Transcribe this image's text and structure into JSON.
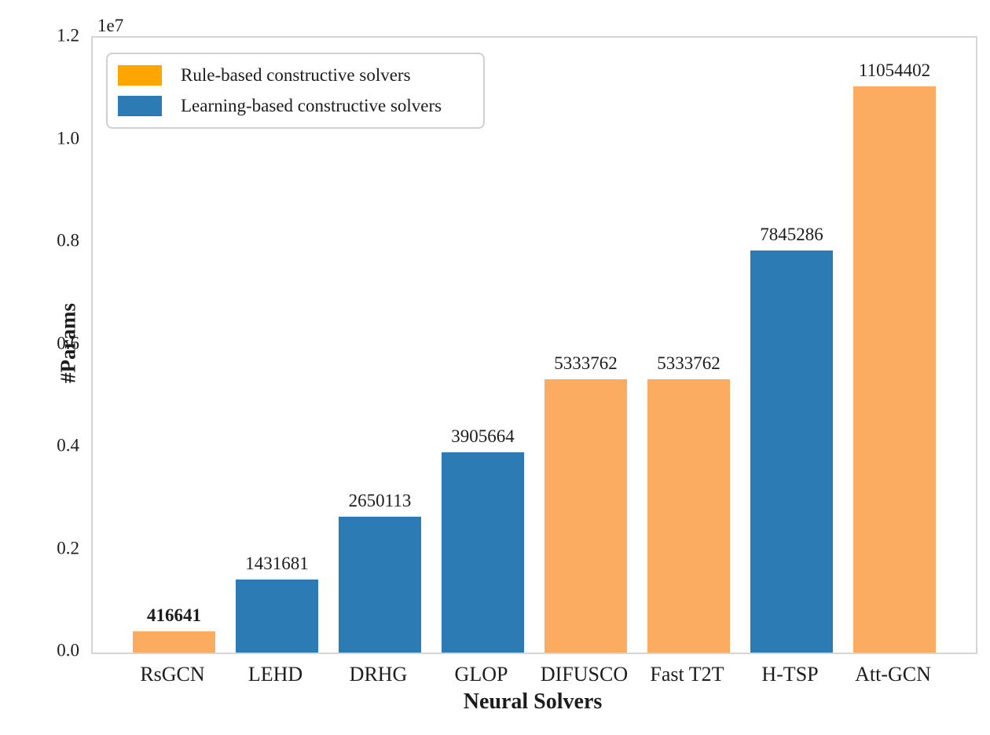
{
  "chart_data": {
    "type": "bar",
    "title": "",
    "xlabel": "Neural Solvers",
    "ylabel": "#Params",
    "y_offset_label": "1e7",
    "ylim": [
      0,
      12000000
    ],
    "yticks": [
      "0.0",
      "0.2",
      "0.4",
      "0.6",
      "0.8",
      "1.0",
      "1.2"
    ],
    "categories": [
      "RsGCN",
      "LEHD",
      "DRHG",
      "GLOP",
      "DIFUSCO",
      "Fast T2T",
      "H-TSP",
      "Att-GCN"
    ],
    "values": [
      416641,
      1431681,
      2650113,
      3905664,
      5333762,
      5333762,
      7845286,
      11054402
    ],
    "bar_color_groups": [
      "orange",
      "blue",
      "blue",
      "blue",
      "orange",
      "orange",
      "blue",
      "orange"
    ],
    "group_colors": {
      "orange": "#FBAC60",
      "blue": "#2D7BB5"
    },
    "bold_value_label_index": 0,
    "grid": false,
    "legend_position": "upper left",
    "legend": [
      {
        "label": "Rule-based constructive solvers",
        "color": "#FFA500"
      },
      {
        "label": "Learning-based constructive solvers",
        "color": "#2D7BB5"
      }
    ]
  }
}
